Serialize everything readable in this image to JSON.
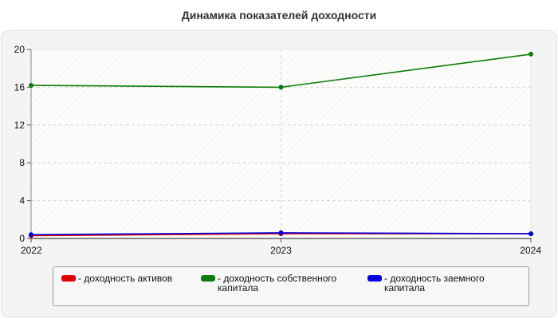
{
  "chart_data": {
    "type": "line",
    "title": "Динамика показателей доходности",
    "x": [
      "2022",
      "2023",
      "2024"
    ],
    "ylim": [
      0,
      20
    ],
    "yticks": [
      "0",
      "4",
      "8",
      "12",
      "16",
      "20"
    ],
    "grid": true,
    "legend_position": "bottom",
    "series": [
      {
        "name": "- доходность активов",
        "color": "#e00000",
        "values": [
          0.3,
          0.5,
          0.5
        ]
      },
      {
        "name": "- доходность собственного капитала",
        "color": "#0a7d0a",
        "values": [
          16.2,
          16.0,
          19.5
        ]
      },
      {
        "name": "- доходность заемного капитала",
        "color": "#0000e0",
        "values": [
          0.4,
          0.6,
          0.5
        ]
      }
    ]
  }
}
